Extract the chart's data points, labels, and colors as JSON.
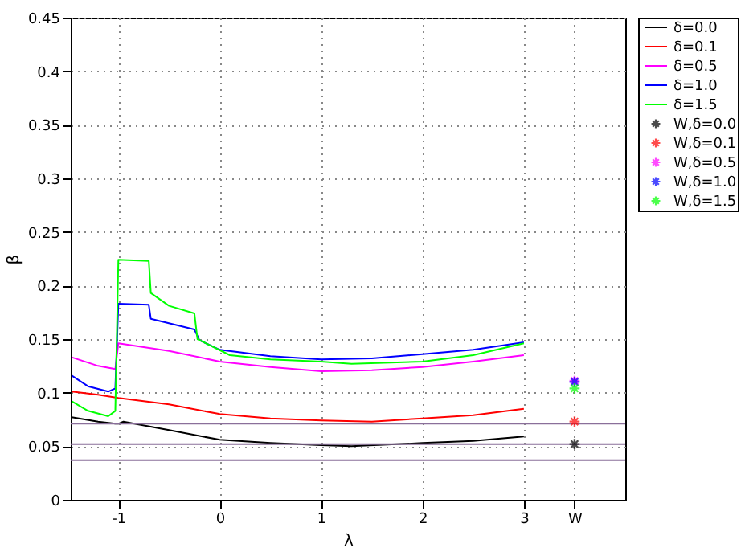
{
  "chart_data": {
    "type": "line",
    "xlabel": "λ",
    "ylabel": "β",
    "xlim": [
      -1.47,
      4
    ],
    "ylim": [
      0,
      0.45
    ],
    "xticks": [
      -1,
      0,
      1,
      2,
      3,
      {
        "value": 3.5,
        "label": "W"
      }
    ],
    "yticks": [
      0,
      0.05,
      0.1,
      0.15,
      0.2,
      0.25,
      0.3,
      0.35,
      0.4,
      0.45
    ],
    "grid": true,
    "legend": "top right",
    "line_style": "solid",
    "series": [
      {
        "name": "δ=0.0",
        "color": "#000000",
        "x": [
          -1.46,
          -1.2,
          -1.03,
          -1,
          -0.95,
          -0.5,
          0,
          0.5,
          1,
          1.3,
          2,
          2.5,
          3
        ],
        "values": [
          0.077,
          0.073,
          0.071,
          0.071,
          0.073,
          0.065,
          0.056,
          0.053,
          0.051,
          0.05,
          0.053,
          0.055,
          0.059
        ]
      },
      {
        "name": "δ=0.1",
        "color": "#ff0000",
        "x": [
          -1.46,
          -1.2,
          -1,
          -0.5,
          0,
          0.5,
          1,
          1.5,
          2,
          2.5,
          3
        ],
        "values": [
          0.101,
          0.098,
          0.095,
          0.089,
          0.08,
          0.076,
          0.074,
          0.073,
          0.076,
          0.079,
          0.085
        ]
      },
      {
        "name": "δ=0.5",
        "color": "#ff00ff",
        "x": [
          -1.46,
          -1.2,
          -1.03,
          -1,
          -0.5,
          0,
          0.5,
          1,
          1.5,
          2,
          2.5,
          3
        ],
        "values": [
          0.133,
          0.125,
          0.122,
          0.146,
          0.139,
          0.129,
          0.124,
          0.12,
          0.121,
          0.124,
          0.129,
          0.135
        ]
      },
      {
        "name": "δ=1.0",
        "color": "#0000ff",
        "x": [
          -1.46,
          -1.3,
          -1.1,
          -1.03,
          -1,
          -0.7,
          -0.68,
          -0.25,
          -0.2,
          0,
          0.5,
          1,
          1.5,
          2,
          2.5,
          3
        ],
        "values": [
          0.116,
          0.106,
          0.101,
          0.104,
          0.183,
          0.182,
          0.169,
          0.159,
          0.149,
          0.14,
          0.134,
          0.131,
          0.132,
          0.136,
          0.14,
          0.147
        ]
      },
      {
        "name": "δ=1.5",
        "color": "#00ff00",
        "x": [
          -1.46,
          -1.3,
          -1.1,
          -1.03,
          -1,
          -0.7,
          -0.68,
          -0.5,
          -0.25,
          -0.22,
          0.1,
          0.5,
          1,
          1.3,
          2,
          2.5,
          3
        ],
        "values": [
          0.092,
          0.083,
          0.078,
          0.083,
          0.224,
          0.223,
          0.193,
          0.181,
          0.174,
          0.15,
          0.135,
          0.131,
          0.129,
          0.127,
          0.129,
          0.135,
          0.146
        ]
      },
      {
        "name": "W,δ=0.0",
        "type": "scatter",
        "marker": "cross",
        "color": "#000000",
        "x": [
          3.5
        ],
        "values": [
          0.052
        ]
      },
      {
        "name": "W,δ=0.1",
        "type": "scatter",
        "marker": "cross",
        "color": "#ff0000",
        "x": [
          3.5
        ],
        "values": [
          0.073
        ]
      },
      {
        "name": "W,δ=0.5",
        "type": "scatter",
        "marker": "cross",
        "color": "#ff00ff",
        "x": [
          3.5
        ],
        "values": [
          0.111
        ]
      },
      {
        "name": "W,δ=1.0",
        "type": "scatter",
        "marker": "cross",
        "color": "#0000ff",
        "x": [
          3.5
        ],
        "values": [
          0.11
        ]
      },
      {
        "name": "W,δ=1.5",
        "type": "scatter",
        "marker": "cross",
        "color": "#00ff00",
        "x": [
          3.5
        ],
        "values": [
          0.104
        ]
      }
    ],
    "ref_lines": [
      {
        "axis": "y",
        "value": 0.071,
        "color": "#8a6f9a",
        "line_style": "solid"
      },
      {
        "axis": "y",
        "value": 0.052,
        "color": "#8a6f9a",
        "line_style": "solid"
      },
      {
        "axis": "y",
        "value": 0.037,
        "color": "#8a6f9a",
        "line_style": "solid"
      }
    ]
  }
}
